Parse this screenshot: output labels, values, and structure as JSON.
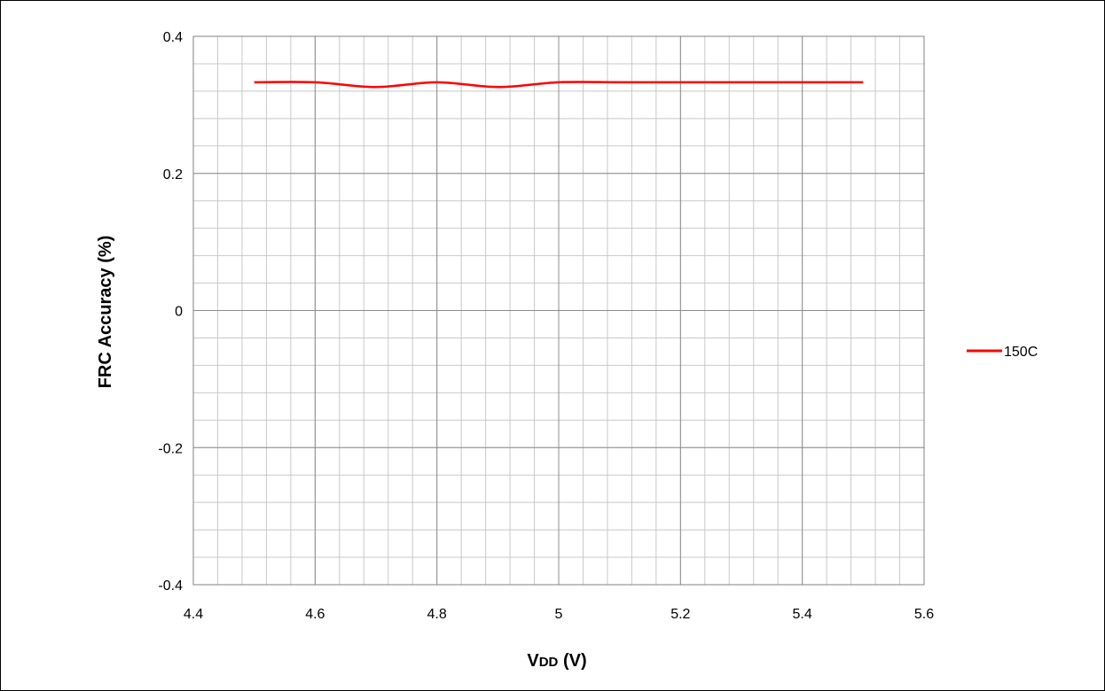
{
  "chart_data": {
    "type": "line",
    "xlabel_main": "V",
    "xlabel_sub": "DD",
    "xlabel_unit": " (V)",
    "ylabel": "FRC Accuracy (%)",
    "xlim": [
      4.4,
      5.6
    ],
    "ylim": [
      -0.4,
      0.4
    ],
    "x_ticks": [
      4.4,
      4.6,
      4.8,
      5.0,
      5.2,
      5.4,
      5.6
    ],
    "x_tick_labels": [
      "4.4",
      "4.6",
      "4.8",
      "5",
      "5.2",
      "5.4",
      "5.6"
    ],
    "y_ticks": [
      0.4,
      0.2,
      0,
      -0.2,
      -0.4
    ],
    "y_tick_labels": [
      "0.4",
      "0.2",
      "0",
      "-0.2",
      "-0.4"
    ],
    "x_minor_step": 0.04,
    "y_minor_step": 0.04,
    "grid": true,
    "legend_position": "right",
    "series": [
      {
        "name": "150C",
        "color": "#ff0000",
        "x": [
          4.5,
          4.6,
          4.7,
          4.8,
          4.9,
          5.0,
          5.1,
          5.2,
          5.3,
          5.4,
          5.5
        ],
        "y": [
          0.333,
          0.333,
          0.326,
          0.333,
          0.326,
          0.333,
          0.333,
          0.333,
          0.333,
          0.333,
          0.333
        ]
      }
    ]
  }
}
